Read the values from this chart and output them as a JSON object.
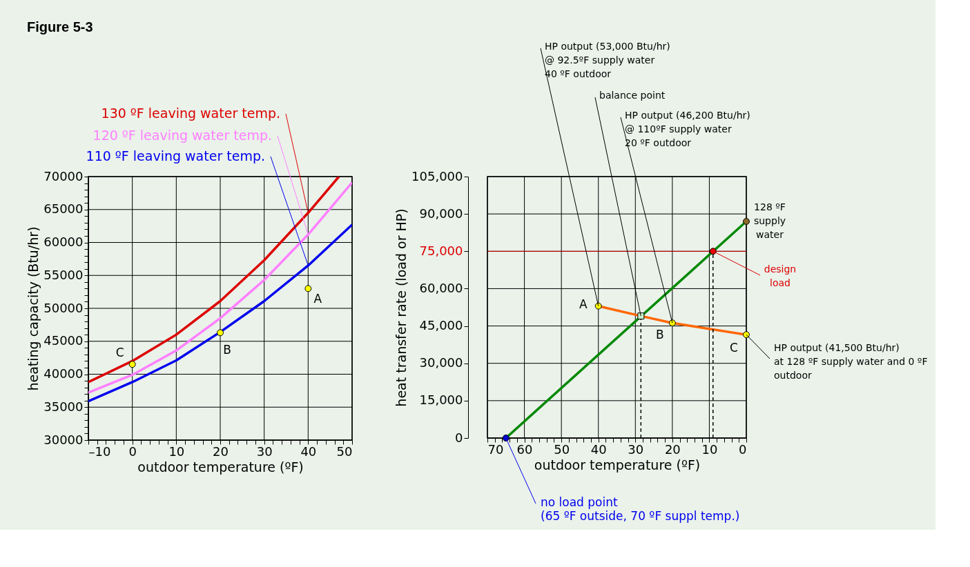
{
  "chart_data": [
    {
      "type": "line",
      "title": "Figure 5-3",
      "xlabel": "outdoor temperature (ºF)",
      "ylabel": "heating capacity (Btu/hr)",
      "xlim": [
        -10,
        50
      ],
      "ylim": [
        30000,
        70000
      ],
      "xticks": [
        {
          "value": -10,
          "label": "–10"
        },
        {
          "value": -8,
          "label": null
        },
        {
          "value": -6,
          "label": null
        },
        {
          "value": -4,
          "label": null
        },
        {
          "value": -2,
          "label": null
        },
        0,
        {
          "value": 2,
          "label": null
        },
        {
          "value": 4,
          "label": null
        },
        {
          "value": 6,
          "label": null
        },
        {
          "value": 8,
          "label": null
        },
        10,
        {
          "value": 12,
          "label": null
        },
        {
          "value": 14,
          "label": null
        },
        {
          "value": 16,
          "label": null
        },
        {
          "value": 18,
          "label": null
        },
        20,
        {
          "value": 22,
          "label": null
        },
        {
          "value": 24,
          "label": null
        },
        {
          "value": 26,
          "label": null
        },
        {
          "value": 28,
          "label": null
        },
        30,
        {
          "value": 32,
          "label": null
        },
        {
          "value": 34,
          "label": null
        },
        {
          "value": 36,
          "label": null
        },
        {
          "value": 38,
          "label": null
        },
        40,
        {
          "value": 42,
          "label": null
        },
        {
          "value": 44,
          "label": null
        },
        {
          "value": 46,
          "label": null
        },
        {
          "value": 48,
          "label": null
        },
        50
      ],
      "yticks": [
        30000,
        {
          "value": 31000,
          "label": null
        },
        {
          "value": 32000,
          "label": null
        },
        {
          "value": 33000,
          "label": null
        },
        {
          "value": 34000,
          "label": null
        },
        35000,
        {
          "value": 36000,
          "label": null
        },
        {
          "value": 37000,
          "label": null
        },
        {
          "value": 38000,
          "label": null
        },
        {
          "value": 39000,
          "label": null
        },
        40000,
        {
          "value": 41000,
          "label": null
        },
        {
          "value": 42000,
          "label": null
        },
        {
          "value": 43000,
          "label": null
        },
        {
          "value": 44000,
          "label": null
        },
        45000,
        {
          "value": 46000,
          "label": null
        },
        {
          "value": 47000,
          "label": null
        },
        {
          "value": 48000,
          "label": null
        },
        {
          "value": 49000,
          "label": null
        },
        50000,
        {
          "value": 51000,
          "label": null
        },
        {
          "value": 52000,
          "label": null
        },
        {
          "value": 53000,
          "label": null
        },
        {
          "value": 54000,
          "label": null
        },
        55000,
        {
          "value": 56000,
          "label": null
        },
        {
          "value": 57000,
          "label": null
        },
        {
          "value": 58000,
          "label": null
        },
        {
          "value": 59000,
          "label": null
        },
        60000,
        {
          "value": 61000,
          "label": null
        },
        {
          "value": 62000,
          "label": null
        },
        {
          "value": 63000,
          "label": null
        },
        {
          "value": 64000,
          "label": null
        },
        65000,
        {
          "value": 66000,
          "label": null
        },
        {
          "value": 67000,
          "label": null
        },
        {
          "value": 68000,
          "label": null
        },
        {
          "value": 69000,
          "label": null
        },
        70000
      ],
      "grid": true,
      "legend": false,
      "series": [
        {
          "name": "130 ºF leaving water temp.",
          "type": "line",
          "color": "#dd0000",
          "x": [
            -10,
            0,
            10,
            20,
            30,
            40,
            47
          ],
          "values": [
            38800,
            42000,
            46000,
            51100,
            57300,
            64500,
            70000
          ]
        },
        {
          "name": "120 ºF leaving water temp.",
          "type": "line",
          "color": "#ff80ff",
          "x": [
            -10,
            0,
            10,
            20,
            30,
            40,
            50
          ],
          "values": [
            37200,
            39900,
            43600,
            48500,
            54300,
            61200,
            69100
          ]
        },
        {
          "name": "110 ºF leaving water temp.",
          "type": "line",
          "color": "#0000ee",
          "x": [
            -10,
            0,
            10,
            20,
            30,
            40,
            50
          ],
          "values": [
            35900,
            38800,
            42100,
            46400,
            51100,
            56500,
            62700
          ]
        },
        {
          "type": "scatter",
          "marker": "circle",
          "color": "#ffff00",
          "x": [
            40,
            20,
            0
          ],
          "values": [
            53000,
            46300,
            41500
          ]
        }
      ],
      "annotations": [
        {
          "text": "A",
          "x": 40,
          "y": 53000
        },
        {
          "text": "B",
          "x": 20,
          "y": 46300
        },
        {
          "text": "C",
          "x": 0,
          "y": 41500
        }
      ]
    },
    {
      "type": "line",
      "xlabel": "outdoor temperature (ºF)",
      "ylabel": "heat transfer rate (load or HP)",
      "xlim": [
        70,
        0
      ],
      "ylim": [
        0,
        105000
      ],
      "xticks": [
        70,
        {
          "value": 68,
          "label": null
        },
        {
          "value": 66,
          "label": null
        },
        {
          "value": 64,
          "label": null
        },
        {
          "value": 62,
          "label": null
        },
        60,
        {
          "value": 58,
          "label": null
        },
        {
          "value": 56,
          "label": null
        },
        {
          "value": 54,
          "label": null
        },
        {
          "value": 52,
          "label": null
        },
        50,
        {
          "value": 48,
          "label": null
        },
        {
          "value": 46,
          "label": null
        },
        {
          "value": 44,
          "label": null
        },
        {
          "value": 42,
          "label": null
        },
        40,
        {
          "value": 38,
          "label": null
        },
        {
          "value": 36,
          "label": null
        },
        {
          "value": 34,
          "label": null
        },
        {
          "value": 32,
          "label": null
        },
        30,
        {
          "value": 28,
          "label": null
        },
        {
          "value": 26,
          "label": null
        },
        {
          "value": 24,
          "label": null
        },
        {
          "value": 22,
          "label": null
        },
        20,
        {
          "value": 18,
          "label": null
        },
        {
          "value": 16,
          "label": null
        },
        {
          "value": 14,
          "label": null
        },
        {
          "value": 12,
          "label": null
        },
        10,
        {
          "value": 8,
          "label": null
        },
        {
          "value": 6,
          "label": null
        },
        {
          "value": 4,
          "label": null
        },
        {
          "value": 2,
          "label": null
        },
        0
      ],
      "yticks": [
        0,
        {
          "value": 15000,
          "label": "15,000"
        },
        {
          "value": 30000,
          "label": "30,000"
        },
        {
          "value": 45000,
          "label": "45,000"
        },
        {
          "value": 60000,
          "label": "60,000"
        },
        {
          "value": 75000,
          "label": "75,000"
        },
        {
          "value": 90000,
          "label": "90,000"
        },
        {
          "value": 105000,
          "label": "105,000"
        }
      ],
      "grid": true,
      "legend": false,
      "ref_lines": [
        {
          "axis": "y",
          "value": 75000,
          "color": "#dd0000"
        }
      ],
      "series": [
        {
          "type": "line",
          "color": "#008800",
          "x": [
            65,
            0
          ],
          "values": [
            0,
            87000
          ]
        },
        {
          "type": "line",
          "color": "#ff6600",
          "x": [
            40,
            28.5,
            20,
            0
          ],
          "values": [
            53000,
            49000,
            46200,
            41500
          ]
        },
        {
          "type": "line",
          "color": "#000000",
          "line_style": "dashed",
          "x": [
            28.5,
            28.5
          ],
          "values": [
            0,
            49000
          ]
        },
        {
          "type": "line",
          "color": "#000000",
          "line_style": "dashed",
          "x": [
            9,
            9
          ],
          "values": [
            0,
            75000
          ]
        },
        {
          "type": "scatter",
          "marker": "circle",
          "color": "#ffff00",
          "x": [
            40,
            20,
            0
          ],
          "values": [
            53000,
            46200,
            41500
          ]
        },
        {
          "type": "scatter",
          "marker": "square",
          "color": "#c8f0c8",
          "x": [
            28.5
          ],
          "values": [
            49000
          ]
        },
        {
          "type": "scatter",
          "marker": "circle",
          "color": "#ee0000",
          "x": [
            9
          ],
          "values": [
            75000
          ]
        },
        {
          "type": "scatter",
          "marker": "circle",
          "color": "#0000cc",
          "x": [
            65
          ],
          "values": [
            0
          ]
        },
        {
          "type": "scatter",
          "marker": "circle",
          "color": "#8b6a2a",
          "x": [
            0
          ],
          "values": [
            87000
          ]
        }
      ],
      "annotations": [
        {
          "text": "HP output (53,000 Btu/hr)\n@ 92.5ºF supply water\n40 ºF outdoor",
          "x": 40,
          "y": 53000
        },
        {
          "text": "balance point",
          "x": 28.5,
          "y": 49000
        },
        {
          "text": "HP output (46,200 Btu/hr)\n@ 110ºF supply water\n20 ºF outdoor",
          "x": 20,
          "y": 46200
        },
        {
          "text": "HP output (41,500 Btu/hr)\nat 128 ºF supply water and 0 ºF\noutdoor",
          "x": 0,
          "y": 41500
        },
        {
          "text": "design\nload",
          "x": 9,
          "y": 75000
        },
        {
          "text": "128 ºF\nsupply\nwater",
          "x": 0,
          "y": 87000
        },
        {
          "text": "no load point\n(65 ºF outside, 70 ºF suppl temp.)",
          "x": 65,
          "y": 0
        },
        {
          "text": "A",
          "x": 40,
          "y": 53000
        },
        {
          "text": "B",
          "x": 20,
          "y": 46200
        },
        {
          "text": "C",
          "x": 0,
          "y": 41500
        }
      ]
    }
  ]
}
